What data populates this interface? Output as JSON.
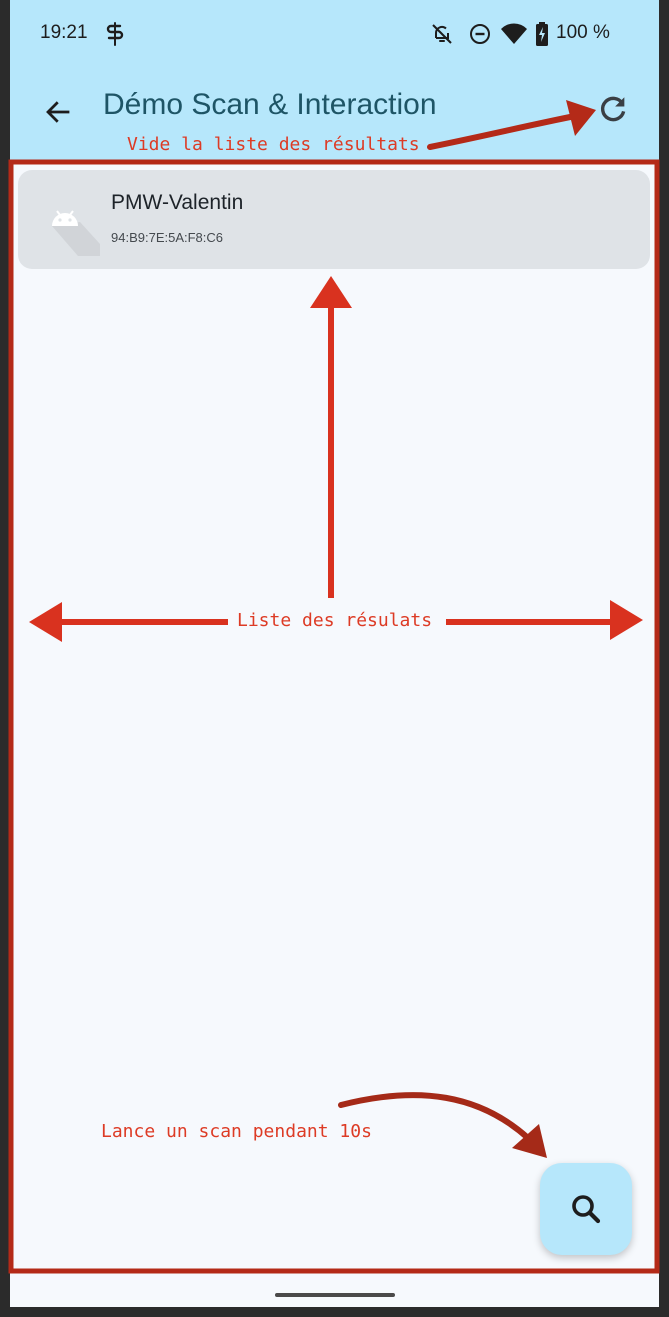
{
  "status_bar": {
    "time": "19:21",
    "battery_percent": "100 %",
    "icons": [
      "s-app-icon",
      "bell-off-icon",
      "do-not-disturb-icon",
      "wifi-icon",
      "battery-charging-icon"
    ]
  },
  "app_bar": {
    "title": "Démo Scan & Interaction",
    "back_icon": "arrow-back-icon",
    "refresh_icon": "refresh-icon"
  },
  "results": [
    {
      "name": "PMW-Valentin",
      "address": "94:B9:7E:5A:F8:C6",
      "icon": "android-icon"
    }
  ],
  "fab": {
    "icon": "search-icon"
  },
  "annotations": {
    "refresh": "Vide la liste des résultats",
    "list": "Liste des résulats",
    "scan": "Lance un scan pendant 10s"
  },
  "colors": {
    "app_bar": "#b6e7fb",
    "background": "#f6f9fd",
    "list_item": "#dfe3e7",
    "title": "#1e5566",
    "annotation": "#dd3b25",
    "annotation_frame": "#b42a18"
  }
}
